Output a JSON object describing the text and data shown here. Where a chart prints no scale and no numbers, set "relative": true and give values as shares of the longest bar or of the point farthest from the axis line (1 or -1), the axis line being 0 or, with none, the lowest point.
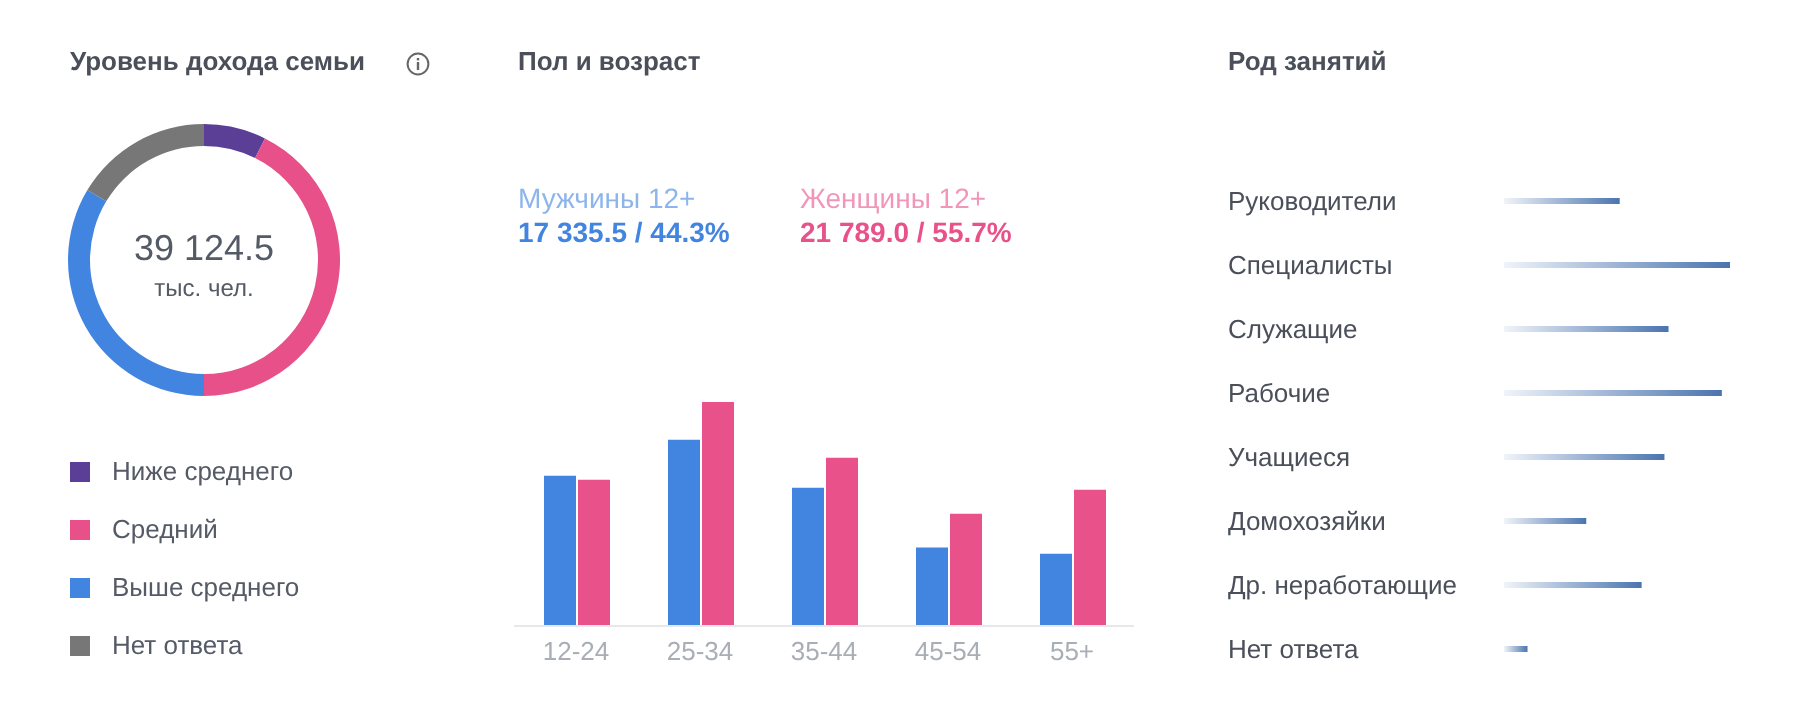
{
  "chart_data": [
    {
      "type": "donut",
      "title": "Уровень дохода семьи",
      "categories": [
        "Ниже среднего",
        "Средний",
        "Выше среднего",
        "Нет ответа"
      ],
      "values": [
        7.4,
        42.6,
        33.6,
        16.4
      ],
      "colors": [
        "#5b3f97",
        "#e8508a",
        "#4285e0",
        "#777777"
      ],
      "legend": "bottom",
      "annotations": [
        "39 124.5",
        "тыс. чел."
      ]
    },
    {
      "type": "bar",
      "title": "Пол и возраст",
      "categories": [
        "12-24",
        "25-34",
        "35-44",
        "45-54",
        "55+"
      ],
      "relative": true,
      "legend": "top",
      "annotations": [
        "17 335.5 / 44.3%",
        "21 789.0 / 55.7%"
      ],
      "series": [
        {
          "name": "Мужчины 12+",
          "color": "#4285e0",
          "values": [
            0.671,
            0.831,
            0.617,
            0.35,
            0.323
          ]
        },
        {
          "name": "Женщины 12+",
          "color": "#e8518a",
          "values": [
            0.653,
            1,
            0.751,
            0.501,
            0.608
          ]
        }
      ]
    },
    {
      "type": "bar",
      "title": "Род занятий",
      "orientation": "horizontal",
      "relative": true,
      "categories": [
        "Руководители",
        "Специалисты",
        "Служащие",
        "Рабочие",
        "Учащиеся",
        "Домохозяйки",
        "Др. неработающие",
        "Нет ответа"
      ],
      "values": [
        0.512,
        1,
        0.728,
        0.964,
        0.71,
        0.364,
        0.609,
        0.104
      ],
      "color": "#4a74b0"
    }
  ]
}
